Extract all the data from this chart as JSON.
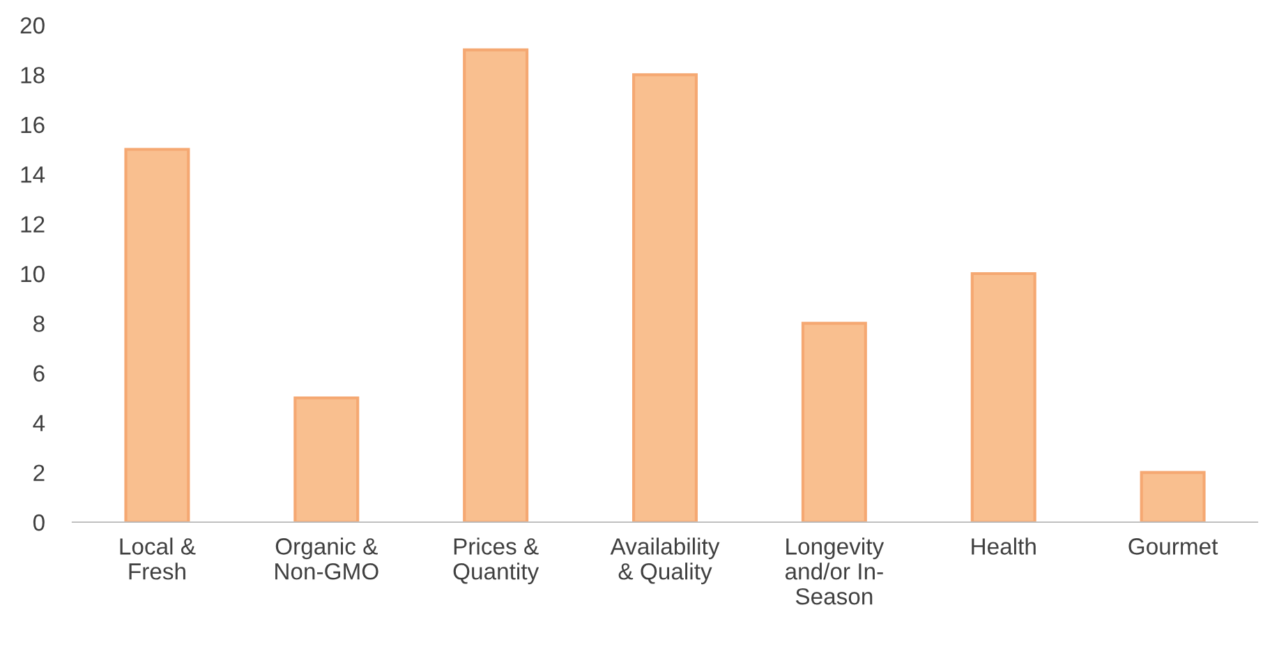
{
  "chart_data": {
    "type": "bar",
    "categories": [
      "Local &\nFresh",
      "Organic &\nNon-GMO",
      "Prices &\nQuantity",
      "Availability\n& Quality",
      "Longevity\nand/or In-\nSeason",
      "Health",
      "Gourmet"
    ],
    "values": [
      15,
      5,
      19,
      18,
      8,
      10,
      2
    ],
    "color": "#f9bf8f",
    "ylim": [
      0,
      20
    ],
    "yticks": [
      0,
      2,
      4,
      6,
      8,
      10,
      12,
      14,
      16,
      18,
      20
    ],
    "grid": false
  }
}
